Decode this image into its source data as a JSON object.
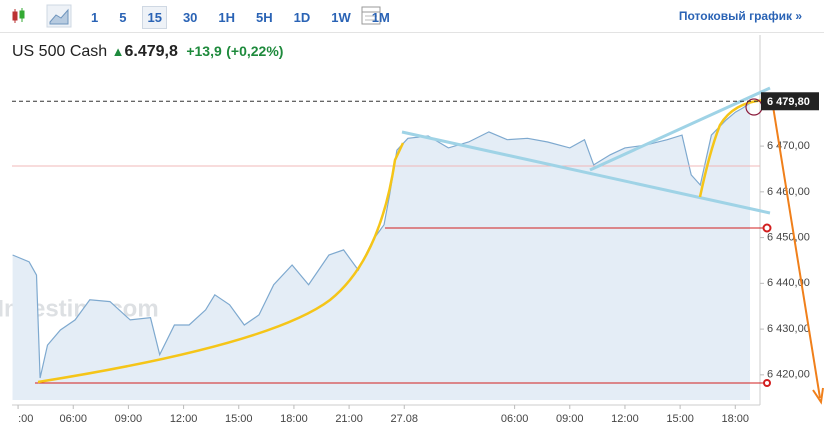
{
  "toolbar": {
    "intervals": [
      "1",
      "5",
      "15",
      "30",
      "1H",
      "5H",
      "1D",
      "1W",
      "1M"
    ],
    "selected_interval": "15",
    "stream_link": "Потоковый график »"
  },
  "header": {
    "instrument": "US 500 Cash",
    "price": "6.479,8",
    "change": "+13,9",
    "change_pct": "(+0,22%)"
  },
  "chart_data": {
    "type": "area",
    "watermark": "Investing.com",
    "color": "#7ea9cf",
    "fill": "#e4edf6",
    "x": [
      2.7,
      3.6,
      4.0,
      4.2,
      4.6,
      5.3,
      6.1,
      6.9,
      8.0,
      9.1,
      10.2,
      10.7,
      11.5,
      12.3,
      13.2,
      13.7,
      14.5,
      15.3,
      16.1,
      16.9,
      17.9,
      18.8,
      19.9,
      20.7,
      21.5,
      22.3,
      22.9,
      23.2,
      23.6,
      24.2,
      25.3,
      26.4,
      27.5,
      28.6,
      29.6,
      30.7,
      31.8,
      33.0,
      33.8,
      34.3,
      35.2,
      36.0,
      37.1,
      38.3,
      39.1,
      39.6,
      40.1,
      40.7,
      41.5,
      42.0,
      42.4,
      42.8
    ],
    "values": [
      6446.2,
      6444.7,
      6441.8,
      6419.3,
      6426.5,
      6429.8,
      6432,
      6436.4,
      6436,
      6432,
      6432.5,
      6424.4,
      6430.9,
      6430.9,
      6434.2,
      6437.5,
      6435.3,
      6430.9,
      6433.1,
      6439.7,
      6444,
      6439.7,
      6446.2,
      6447.3,
      6442.9,
      6449.5,
      6452.8,
      6459.3,
      6469.1,
      6471.7,
      6472.2,
      6469.6,
      6470.9,
      6473.1,
      6471.4,
      6471.7,
      6470.9,
      6469.6,
      6471.4,
      6465.9,
      6468.1,
      6469.6,
      6470.2,
      6471.4,
      6472.4,
      6463.7,
      6461.5,
      6472.4,
      6475.7,
      6477.4,
      6478.3,
      6479.4
    ],
    "xlim": [
      2.67,
      42.8
    ],
    "xticks": [
      {
        "value": 3,
        "label": ":00"
      },
      {
        "value": 6,
        "label": "06:00"
      },
      {
        "value": 9,
        "label": "09:00"
      },
      {
        "value": 12,
        "label": "12:00"
      },
      {
        "value": 15,
        "label": "15:00"
      },
      {
        "value": 18,
        "label": "18:00"
      },
      {
        "value": 21,
        "label": "21:00"
      },
      {
        "value": 24,
        "label": "27.08"
      },
      {
        "value": 30,
        "label": "06:00"
      },
      {
        "value": 33,
        "label": "09:00"
      },
      {
        "value": 36,
        "label": "12:00"
      },
      {
        "value": 39,
        "label": "15:00"
      },
      {
        "value": 42,
        "label": "18:00"
      }
    ],
    "ylim": [
      6414.5,
      6482.7
    ],
    "yticks": [
      {
        "value": 6420,
        "label": "6 420,00"
      },
      {
        "value": 6430,
        "label": "6 430,00"
      },
      {
        "value": 6440,
        "label": "6 440,00"
      },
      {
        "value": 6450,
        "label": "6 450,00"
      },
      {
        "value": 6460,
        "label": "6 460,00"
      },
      {
        "value": 6470,
        "label": "6 470,00"
      }
    ],
    "last_price": 6479.8,
    "last_price_label": "6 479,80"
  }
}
